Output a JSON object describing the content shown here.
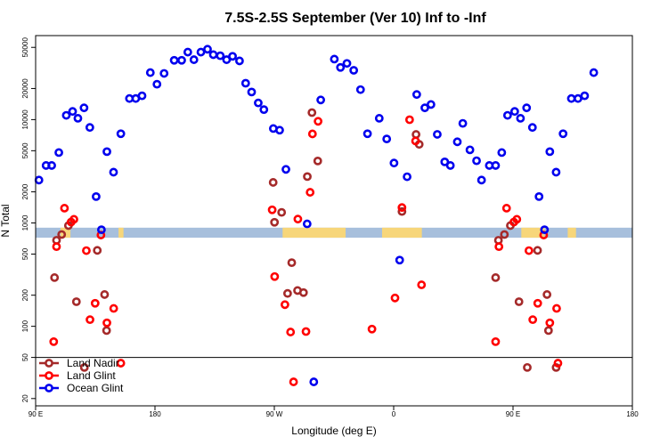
{
  "chart_data": {
    "type": "scatter",
    "title": "7.5S-2.5S September (Ver 10)   Inf to -Inf",
    "xlabel": "Longitude (deg E)",
    "ylabel": "N Total",
    "yscale": "log",
    "ylim": [
      17,
      65000
    ],
    "xlim": [
      90,
      450
    ],
    "x_ticks": [
      {
        "value": 90,
        "label": "90 E"
      },
      {
        "value": 162,
        "label": "180"
      },
      {
        "value": 234,
        "label": "90 W"
      },
      {
        "value": 306,
        "label": "0"
      },
      {
        "value": 378,
        "label": "90 E"
      },
      {
        "value": 450,
        "label": "180"
      }
    ],
    "y_ticks": [
      {
        "value": 20,
        "label": "20"
      },
      {
        "value": 50,
        "label": "50"
      },
      {
        "value": 100,
        "label": "100"
      },
      {
        "value": 200,
        "label": "200"
      },
      {
        "value": 500,
        "label": "500"
      },
      {
        "value": 1000,
        "label": "1000"
      },
      {
        "value": 2000,
        "label": "2000"
      },
      {
        "value": 5000,
        "label": "5000"
      },
      {
        "value": 10000,
        "label": "10000"
      },
      {
        "value": 20000,
        "label": "20000"
      },
      {
        "value": 50000,
        "label": "50000"
      }
    ],
    "reference_line": 50,
    "surface_band": {
      "y_range": [
        720,
        900
      ],
      "color": "#a7bfdc",
      "land_color": "#f7d67a",
      "land_segments": [
        [
          105,
          111
        ],
        [
          140,
          143
        ],
        [
          239,
          277
        ],
        [
          299,
          323
        ],
        [
          383,
          397
        ],
        [
          411,
          416
        ]
      ]
    },
    "legend": {
      "position": "bottom-left"
    },
    "series": [
      {
        "name": "Land Nadir",
        "color": "#a52a2a",
        "points": [
          [
            101.4,
            296
          ],
          [
            102.6,
            680
          ],
          [
            105.7,
            773
          ],
          [
            109.8,
            944
          ],
          [
            114.6,
            173
          ],
          [
            119.4,
            40
          ],
          [
            127.2,
            543
          ],
          [
            131.6,
            203
          ],
          [
            132.8,
            91
          ],
          [
            233.3,
            2469
          ],
          [
            234.1,
            1015
          ],
          [
            238.4,
            1266
          ],
          [
            242.0,
            208
          ],
          [
            244.5,
            413
          ],
          [
            248.0,
            222
          ],
          [
            251.6,
            212
          ],
          [
            253.9,
            2811
          ],
          [
            256.7,
            11696
          ],
          [
            260.2,
            3978
          ],
          [
            311.0,
            1291
          ],
          [
            319.5,
            7188
          ],
          [
            321.4,
            5762
          ],
          [
            367.5,
            296
          ],
          [
            369.2,
            680
          ],
          [
            372.8,
            773
          ],
          [
            376.4,
            944
          ],
          [
            381.6,
            173
          ],
          [
            386.6,
            40
          ],
          [
            392.8,
            543
          ],
          [
            398.5,
            203
          ],
          [
            399.4,
            91
          ],
          [
            404.0,
            40
          ]
        ]
      },
      {
        "name": "Land Glint",
        "color": "#ff0000",
        "points": [
          [
            100.9,
            71
          ],
          [
            102.6,
            590
          ],
          [
            107.4,
            1390
          ],
          [
            111.4,
            1020
          ],
          [
            113.1,
            1085
          ],
          [
            120.6,
            540
          ],
          [
            122.8,
            116
          ],
          [
            125.9,
            167
          ],
          [
            129.4,
            764
          ],
          [
            133.0,
            108
          ],
          [
            137.1,
            149
          ],
          [
            141.4,
            44
          ],
          [
            232.7,
            1340
          ],
          [
            234.2,
            303
          ],
          [
            240.4,
            162
          ],
          [
            243.8,
            88
          ],
          [
            245.6,
            29
          ],
          [
            248.2,
            1090
          ],
          [
            253.1,
            89
          ],
          [
            255.6,
            1980
          ],
          [
            257.0,
            7275
          ],
          [
            260.4,
            9630
          ],
          [
            292.9,
            94
          ],
          [
            306.8,
            188
          ],
          [
            311.0,
            1410
          ],
          [
            315.6,
            9977
          ],
          [
            319.2,
            6210
          ],
          [
            322.8,
            252
          ],
          [
            367.5,
            71
          ],
          [
            369.5,
            590
          ],
          [
            374.1,
            1390
          ],
          [
            378.5,
            1020
          ],
          [
            380.3,
            1085
          ],
          [
            387.6,
            540
          ],
          [
            389.9,
            116
          ],
          [
            392.9,
            167
          ],
          [
            396.5,
            764
          ],
          [
            400.2,
            108
          ],
          [
            404.3,
            149
          ],
          [
            405.1,
            44
          ]
        ]
      },
      {
        "name": "Ocean Glint",
        "color": "#0000ee",
        "points": [
          [
            92.0,
            2600
          ],
          [
            96.3,
            3600
          ],
          [
            99.7,
            3600
          ],
          [
            104.0,
            4800
          ],
          [
            108.5,
            11000
          ],
          [
            112.3,
            12000
          ],
          [
            115.5,
            10300
          ],
          [
            119.2,
            13000
          ],
          [
            122.7,
            8400
          ],
          [
            126.5,
            1800
          ],
          [
            129.7,
            860
          ],
          [
            133.0,
            4900
          ],
          [
            137.0,
            3100
          ],
          [
            141.4,
            7300
          ],
          [
            146.6,
            16000
          ],
          [
            150.4,
            16000
          ],
          [
            154.2,
            17000
          ],
          [
            159.2,
            28500
          ],
          [
            163.2,
            22000
          ],
          [
            167.5,
            28000
          ],
          [
            173.6,
            37500
          ],
          [
            178.1,
            37500
          ],
          [
            181.8,
            45000
          ],
          [
            185.5,
            38000
          ],
          [
            189.7,
            45000
          ],
          [
            193.7,
            48000
          ],
          [
            197.2,
            42500
          ],
          [
            201.4,
            41500
          ],
          [
            205.2,
            38000
          ],
          [
            208.8,
            41000
          ],
          [
            213.0,
            37000
          ],
          [
            216.7,
            22500
          ],
          [
            220.3,
            18500
          ],
          [
            224.3,
            14500
          ],
          [
            227.7,
            12500
          ],
          [
            233.4,
            8200
          ],
          [
            237.2,
            7900
          ],
          [
            241.0,
            3300
          ],
          [
            253.8,
            980
          ],
          [
            257.8,
            29
          ],
          [
            262.0,
            15500
          ],
          [
            270.2,
            38500
          ],
          [
            273.9,
            32000
          ],
          [
            277.8,
            35000
          ],
          [
            281.9,
            30000
          ],
          [
            286.0,
            19500
          ],
          [
            290.2,
            7300
          ],
          [
            297.3,
            10300
          ],
          [
            301.8,
            6500
          ],
          [
            306.2,
            3800
          ],
          [
            309.6,
            437
          ],
          [
            314.1,
            2800
          ],
          [
            319.9,
            17500
          ],
          [
            324.8,
            13000
          ],
          [
            328.5,
            14000
          ],
          [
            332.3,
            7200
          ],
          [
            336.8,
            3900
          ],
          [
            340.2,
            3600
          ],
          [
            344.4,
            6100
          ],
          [
            347.7,
            9200
          ],
          [
            352.0,
            5100
          ],
          [
            356.0,
            4000
          ],
          [
            359.0,
            2600
          ],
          [
            363.7,
            3600
          ],
          [
            367.5,
            3600
          ],
          [
            371.2,
            4800
          ],
          [
            374.7,
            11000
          ],
          [
            379.0,
            12000
          ],
          [
            382.5,
            10300
          ],
          [
            386.2,
            13000
          ],
          [
            389.7,
            8400
          ],
          [
            393.7,
            1800
          ],
          [
            397.0,
            860
          ],
          [
            400.2,
            4900
          ],
          [
            404.0,
            3100
          ],
          [
            408.2,
            7300
          ],
          [
            413.2,
            16000
          ],
          [
            417.2,
            16000
          ],
          [
            421.2,
            17000
          ],
          [
            426.7,
            28500
          ]
        ]
      }
    ]
  }
}
